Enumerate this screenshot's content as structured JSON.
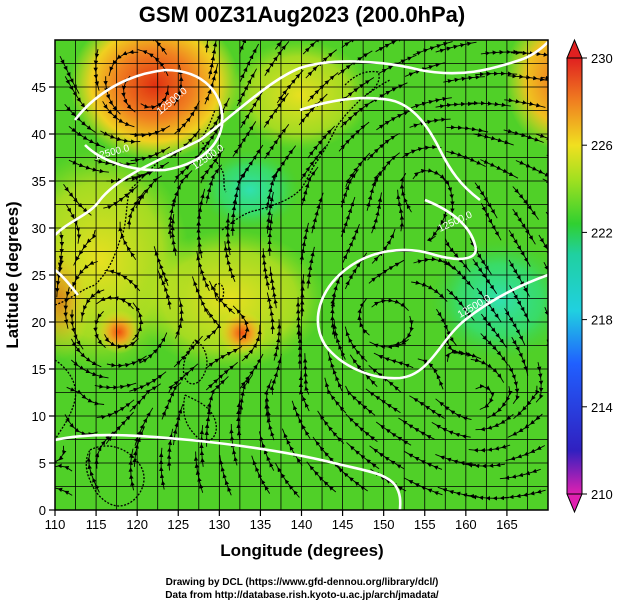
{
  "title": "GSM 00Z31Aug2023 (200.0hPa)",
  "x_axis": {
    "label": "Longitude (degrees)",
    "range": [
      110,
      170
    ],
    "ticks": [
      "110",
      "115",
      "120",
      "125",
      "130",
      "135",
      "140",
      "145",
      "150",
      "155",
      "160",
      "165"
    ]
  },
  "y_axis": {
    "label": "Latitude  (degrees)",
    "range": [
      0,
      50
    ],
    "ticks": [
      "0",
      "5",
      "10",
      "15",
      "20",
      "25",
      "30",
      "35",
      "40",
      "45"
    ]
  },
  "colorbar": {
    "min": 210,
    "max": 230,
    "ticks": [
      "210",
      "214",
      "218",
      "222",
      "226",
      "230"
    ]
  },
  "contour_labels": [
    "12500.0",
    "12500.0",
    "12500.0",
    "12500.0",
    "12500.0"
  ],
  "credits": {
    "line1": "Drawing by DCL (https://www.gfd-dennou.org/library/dcl/)",
    "line2": "Data from http://database.rish.kyoto-u.ac.jp/arch/jmadata/"
  }
}
